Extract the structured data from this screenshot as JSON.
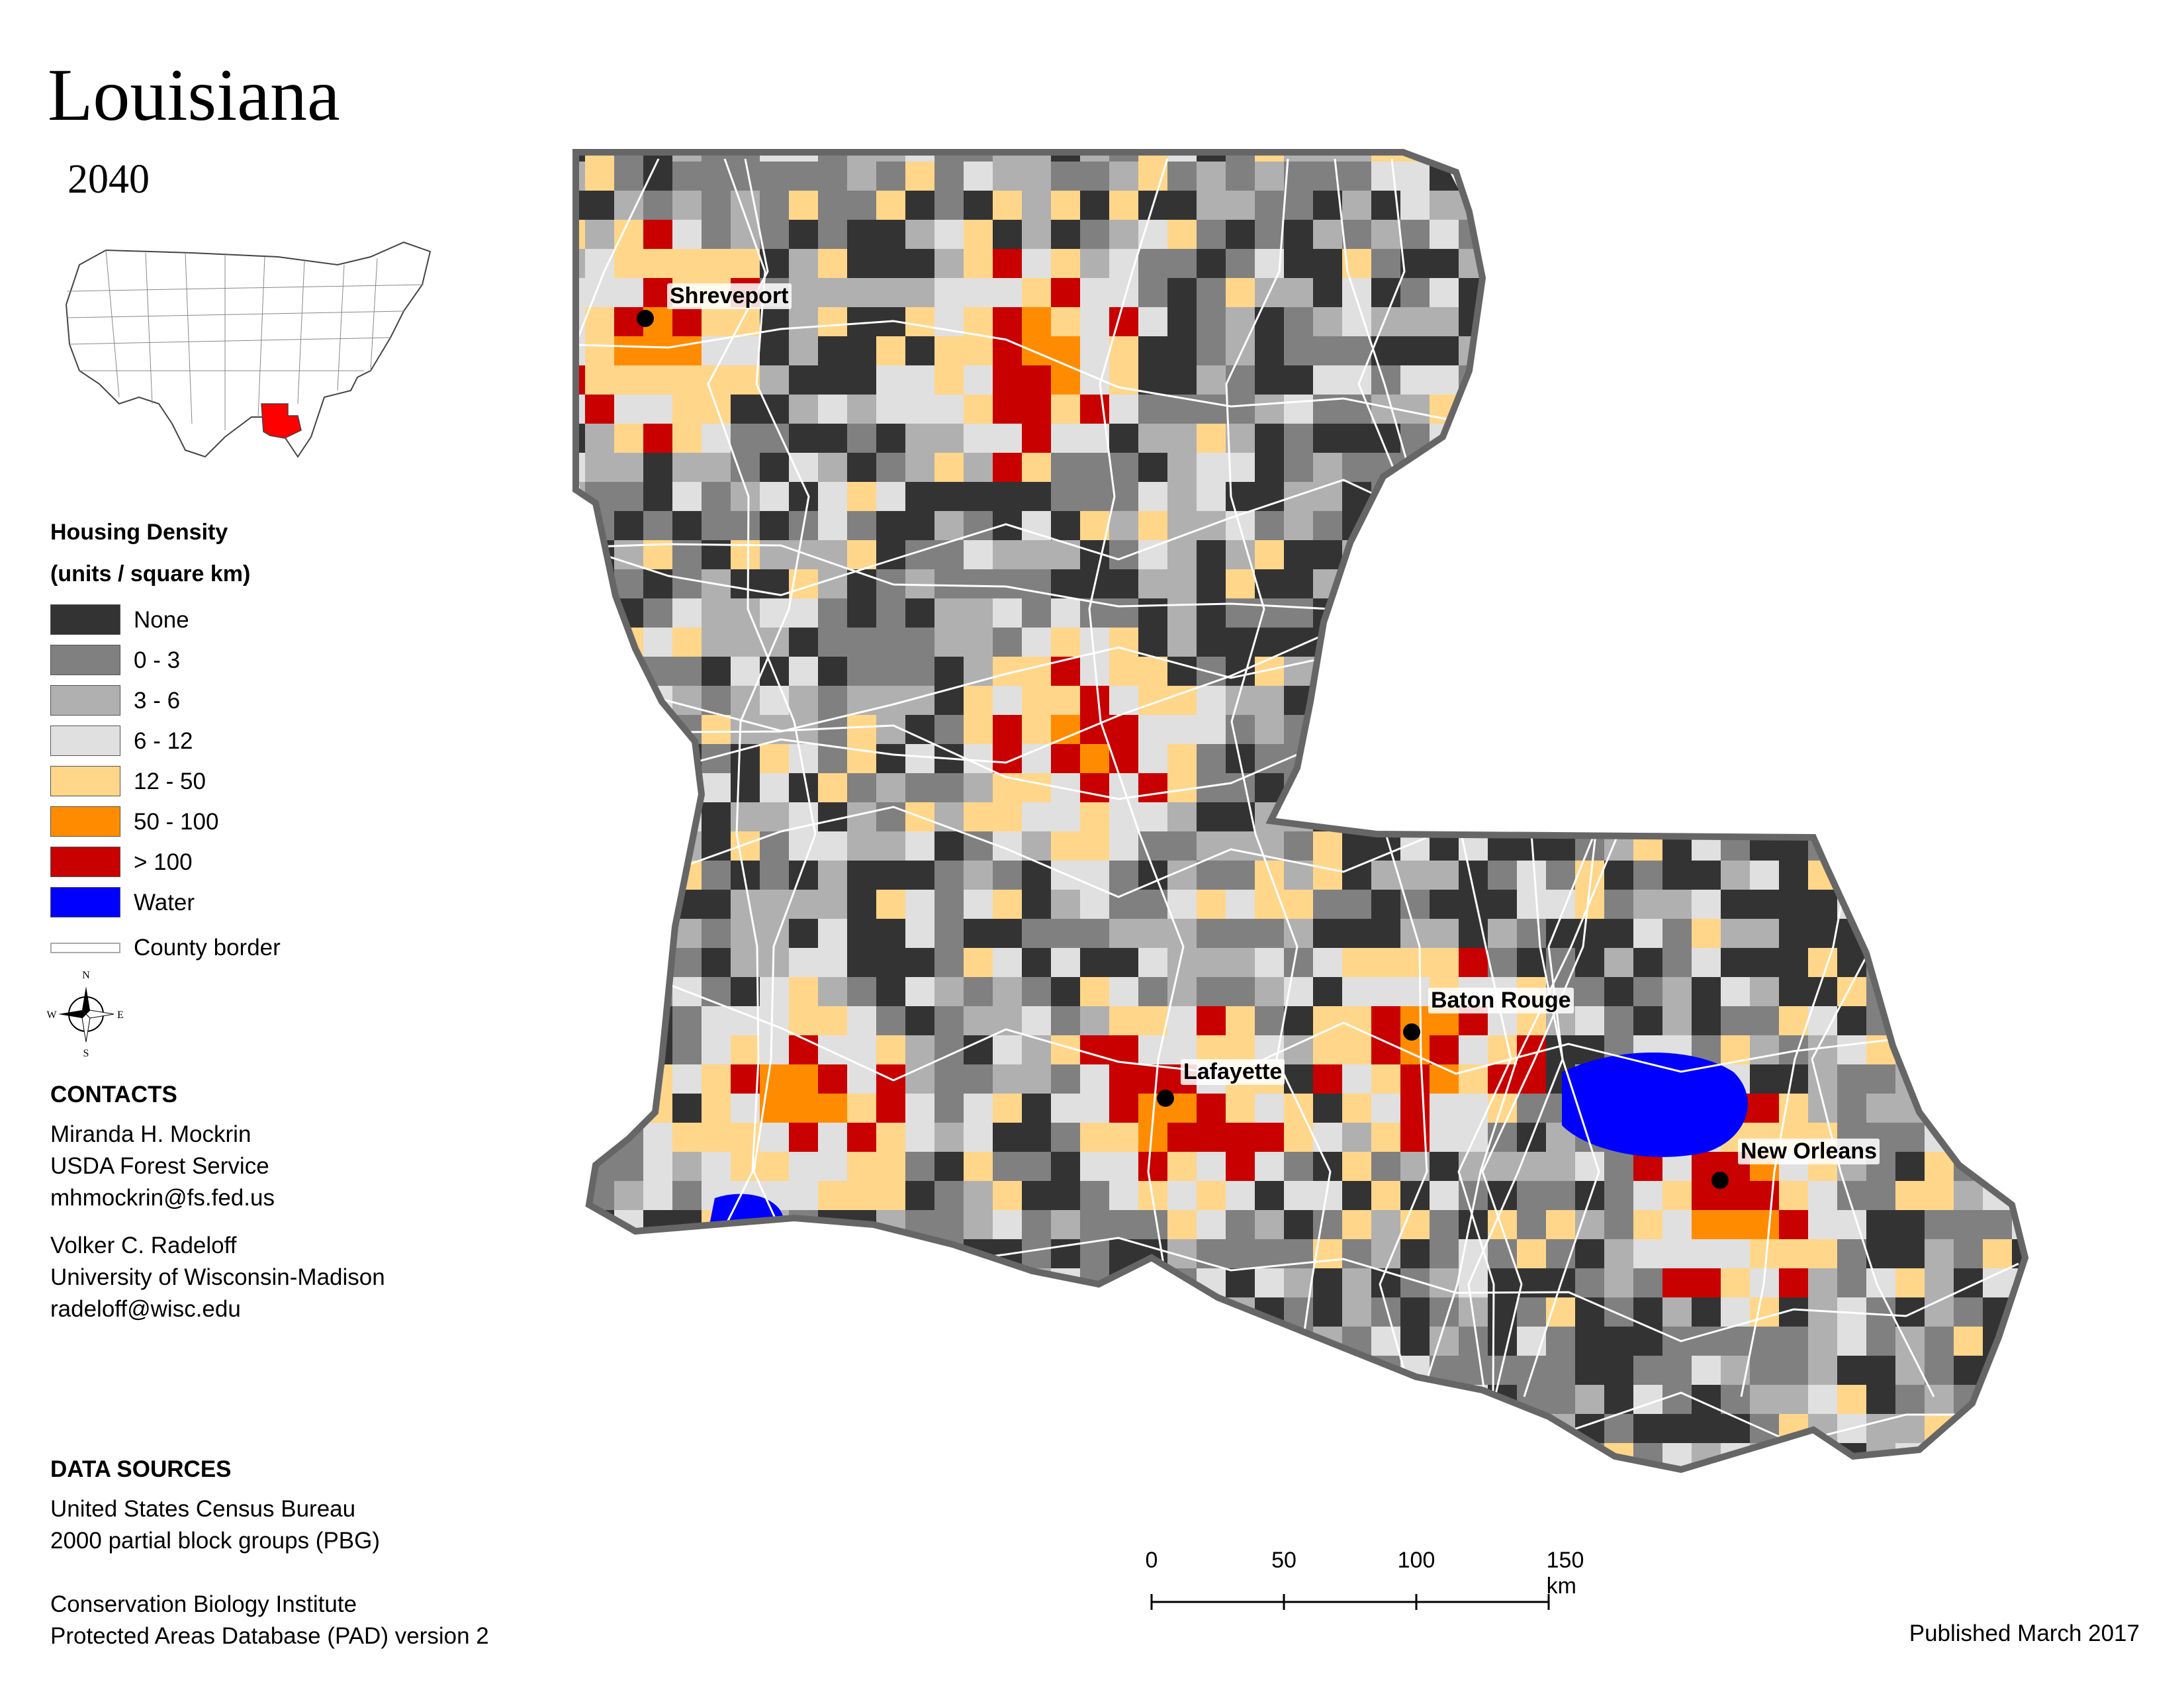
{
  "title": "Louisiana",
  "subtitle": "2040",
  "legend": {
    "heading": "Housing Density",
    "unit": "(units / square km)",
    "items": [
      {
        "label": "None",
        "color": "#333333"
      },
      {
        "label": "0 - 3",
        "color": "#808080"
      },
      {
        "label": "3 - 6",
        "color": "#b0b0b0"
      },
      {
        "label": "6 - 12",
        "color": "#e0e0e0"
      },
      {
        "label": "12 - 50",
        "color": "#ffd68a"
      },
      {
        "label": "50 - 100",
        "color": "#ff8c00"
      },
      {
        "label": "> 100",
        "color": "#c80000"
      },
      {
        "label": "Water",
        "color": "#0000ff"
      }
    ],
    "border_label": "County border"
  },
  "compass": {
    "n": "N",
    "s": "S",
    "e": "E",
    "w": "W"
  },
  "contacts": {
    "heading": "CONTACTS",
    "people": [
      {
        "name": "Miranda H. Mockrin",
        "org": "USDA Forest Service",
        "email": "mhmockrin@fs.fed.us"
      },
      {
        "name": "Volker C. Radeloff",
        "org": "University of Wisconsin-Madison",
        "email": "radeloff@wisc.edu"
      }
    ]
  },
  "data_sources": {
    "heading": "DATA SOURCES",
    "lines": [
      "United States Census Bureau",
      "2000 partial block groups (PBG)",
      "Conservation Biology Institute",
      "Protected Areas Database (PAD) version 2"
    ]
  },
  "cities": [
    "Shreveport",
    "Baton Rouge",
    "Lafayette",
    "New Orleans"
  ],
  "scale": {
    "ticks": [
      "0",
      "50",
      "100",
      "150 km"
    ]
  },
  "published": "Published March 2017",
  "colors": {
    "state_outline": "#666666",
    "county_border": "#ffffff",
    "highlight_state": "#ff0000"
  }
}
